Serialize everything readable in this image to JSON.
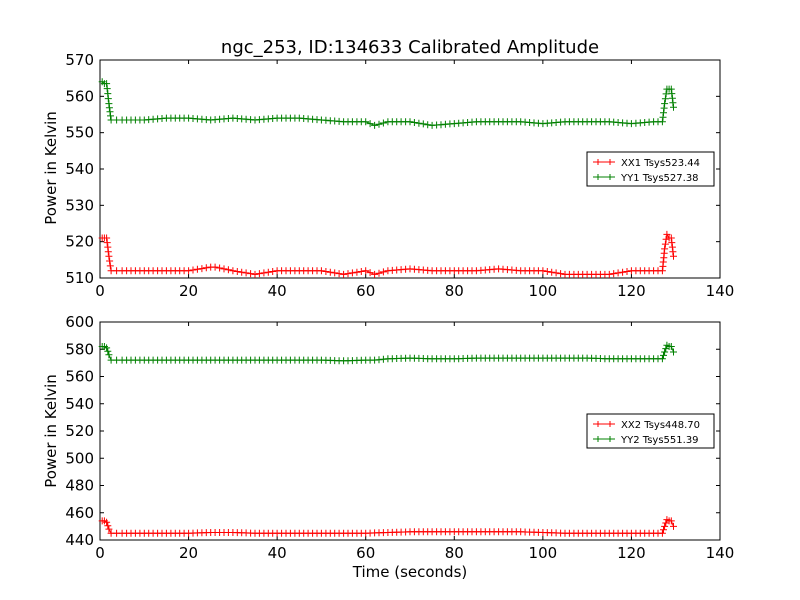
{
  "chart_data": [
    {
      "type": "line",
      "title": "ngc_253, ID:134633 Calibrated Amplitude",
      "xlabel": "",
      "ylabel": "Power in Kelvin",
      "xlim": [
        0,
        140
      ],
      "ylim": [
        510,
        570
      ],
      "x_ticks": [
        "0",
        "20",
        "40",
        "60",
        "80",
        "100",
        "120",
        "140"
      ],
      "y_ticks": [
        "510",
        "520",
        "530",
        "540",
        "550",
        "560",
        "570"
      ],
      "legend_position": "center-right",
      "grid": false,
      "series": [
        {
          "name": "XX1 Tsys523.44",
          "color": "#ff0000",
          "marker": "plus",
          "x": [
            0.5,
            1,
            1.5,
            2,
            2.5,
            5,
            10,
            15,
            20,
            25,
            26,
            30,
            35,
            40,
            45,
            50,
            55,
            60,
            62,
            65,
            70,
            75,
            80,
            85,
            90,
            95,
            100,
            105,
            110,
            115,
            120,
            125,
            127,
            127.5,
            128,
            128.5,
            129,
            129.5
          ],
          "y": [
            521,
            521,
            521,
            516,
            512,
            512,
            512,
            512,
            512,
            513,
            513,
            512,
            511,
            512,
            512,
            512,
            511,
            512,
            511,
            512,
            512.5,
            512,
            512,
            512,
            512.5,
            512,
            512,
            511,
            511,
            511,
            512,
            512,
            512,
            518,
            522,
            521,
            521,
            516
          ]
        },
        {
          "name": "YY1 Tsys527.38",
          "color": "#008000",
          "marker": "plus",
          "x": [
            0.5,
            1,
            1.5,
            2,
            2.5,
            5,
            10,
            15,
            20,
            25,
            30,
            35,
            40,
            45,
            50,
            55,
            60,
            62,
            65,
            70,
            75,
            80,
            85,
            90,
            95,
            100,
            105,
            110,
            115,
            120,
            125,
            127,
            127.5,
            128,
            128.5,
            129,
            129.5
          ],
          "y": [
            564,
            563.5,
            563.5,
            558,
            553.5,
            553.5,
            553.5,
            554,
            554,
            553.5,
            554,
            553.5,
            554,
            554,
            553.5,
            553,
            553,
            552,
            553,
            553,
            552,
            552.5,
            553,
            553,
            553,
            552.5,
            553,
            553,
            553,
            552.5,
            553,
            553,
            558,
            562,
            562,
            562,
            557
          ]
        }
      ]
    },
    {
      "type": "line",
      "title": "",
      "xlabel": "Time (seconds)",
      "ylabel": "Power in Kelvin",
      "xlim": [
        0,
        140
      ],
      "ylim": [
        440,
        600
      ],
      "x_ticks": [
        "0",
        "20",
        "40",
        "60",
        "80",
        "100",
        "120",
        "140"
      ],
      "y_ticks": [
        "440",
        "460",
        "480",
        "500",
        "520",
        "540",
        "560",
        "580",
        "600"
      ],
      "legend_position": "center-right",
      "grid": false,
      "series": [
        {
          "name": "XX2 Tsys448.70",
          "color": "#ff0000",
          "marker": "plus",
          "x": [
            0.5,
            1,
            1.5,
            2,
            2.5,
            5,
            10,
            15,
            20,
            25,
            30,
            35,
            40,
            45,
            50,
            55,
            60,
            65,
            70,
            75,
            80,
            85,
            90,
            95,
            100,
            105,
            110,
            115,
            120,
            125,
            127,
            127.5,
            128,
            128.5,
            129,
            129.5
          ],
          "y": [
            454,
            454,
            453,
            448,
            445,
            445,
            445,
            445,
            445,
            445.5,
            445.5,
            445,
            445,
            445,
            445,
            445,
            445,
            445.5,
            446,
            446,
            446,
            446,
            446,
            446,
            445.5,
            445,
            445,
            445,
            445,
            445,
            445,
            450,
            455,
            454,
            454,
            450
          ]
        },
        {
          "name": "YY2 Tsys551.39",
          "color": "#008000",
          "marker": "plus",
          "x": [
            0.5,
            1,
            1.5,
            2,
            2.5,
            5,
            10,
            15,
            20,
            25,
            30,
            35,
            40,
            45,
            50,
            55,
            60,
            62,
            65,
            70,
            75,
            80,
            85,
            90,
            95,
            100,
            105,
            110,
            115,
            120,
            125,
            127,
            127.5,
            128,
            128.5,
            129,
            129.5
          ],
          "y": [
            582,
            582,
            581,
            576,
            572,
            572,
            572,
            572,
            572,
            572,
            572,
            572,
            572,
            572,
            572,
            571.5,
            572,
            572,
            573,
            573.5,
            573,
            573,
            573.5,
            573.5,
            573.5,
            573.5,
            573.5,
            573.5,
            573,
            573,
            573,
            573,
            578,
            583,
            582,
            582,
            578
          ]
        }
      ]
    }
  ]
}
